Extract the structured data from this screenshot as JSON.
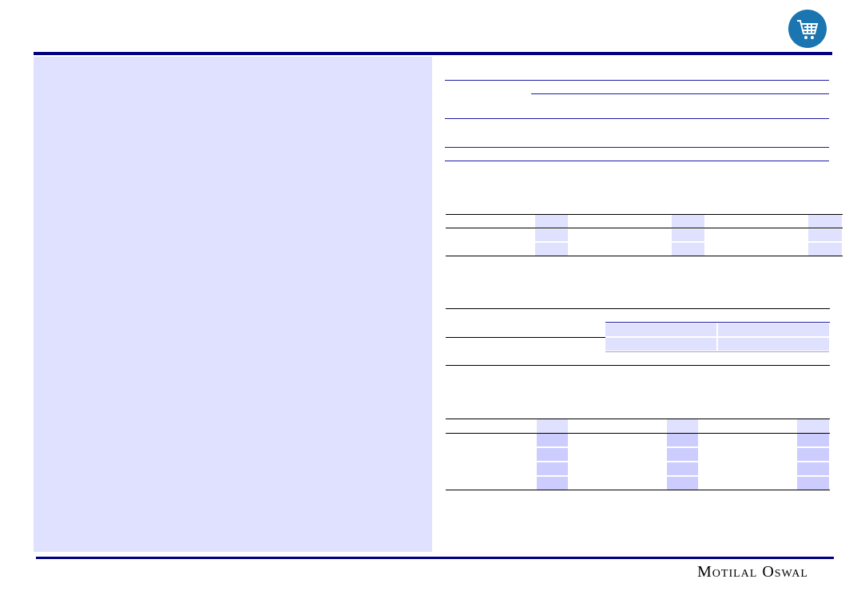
{
  "header": {
    "icon": "shopping-cart-icon",
    "accent": "#1a75b0",
    "rule_color": "#000080"
  },
  "sidebar": {
    "background": "#e0e0ff"
  },
  "footer": {
    "logo_text": "Motilal Oswal"
  }
}
